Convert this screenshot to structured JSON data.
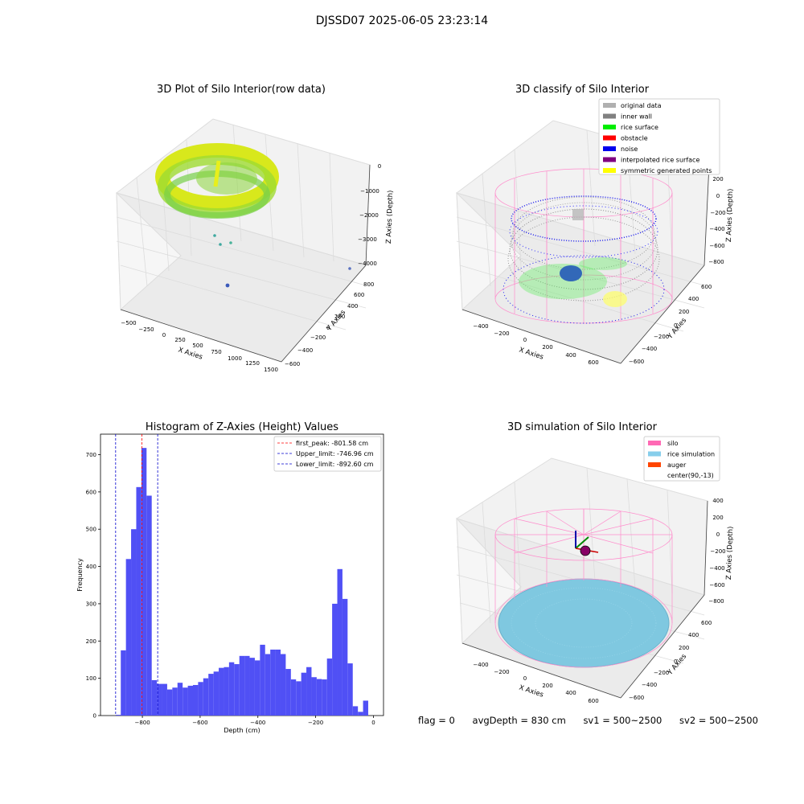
{
  "suptitle": "DJSSD07 2025-06-05 23:23:14",
  "footer": {
    "flag": "flag = 0",
    "avg_depth": "avgDepth = 830 cm",
    "sv1": "sv1 = 500~2500",
    "sv2": "sv2 = 500~2500"
  },
  "colors": {
    "histogram_bar": "#5050f5",
    "first_peak_line": "#ff0000",
    "limit_lines": "#0000cc",
    "silo": "#ff69b4",
    "rice_simulation": "#87ceeb",
    "auger": "#ff4500",
    "original_data": "#b0b0b0",
    "inner_wall": "#808080",
    "rice_surface": "#00ee00",
    "obstacle": "#ff0000",
    "noise": "#0000ee",
    "interpolated_rice_surface": "#800080",
    "symmetric_generated_points": "#ffff00"
  },
  "chart_data": [
    {
      "type": "scatter",
      "title": "3D Plot of Silo Interior(row data)",
      "xlabel": "X Axies",
      "ylabel": "Y Axies",
      "zlabel": "Z Axies (Depth)",
      "x_ticks": [
        "−500",
        "−250",
        "0",
        "250",
        "500",
        "750",
        "1000",
        "1250",
        "1500"
      ],
      "y_ticks": [
        "−600",
        "−400",
        "−200",
        "0",
        "200",
        "400",
        "600",
        "800"
      ],
      "z_ticks": [
        "−4000",
        "−3000",
        "−2000",
        "−1000",
        "0"
      ],
      "xlim": [
        -550,
        1550
      ],
      "ylim": [
        -650,
        850
      ],
      "zlim": [
        -4500,
        200
      ]
    },
    {
      "type": "scatter",
      "title": "3D classify of Silo Interior",
      "xlabel": "X Axies",
      "ylabel": "Y Axies",
      "zlabel": "Z Axies (Depth)",
      "x_ticks": [
        "−400",
        "−200",
        "0",
        "200",
        "400",
        "600"
      ],
      "y_ticks": [
        "−600",
        "−400",
        "−200",
        "0",
        "200",
        "400",
        "600"
      ],
      "z_ticks": [
        "−800",
        "−600",
        "−400",
        "−200",
        "0",
        "200"
      ],
      "legend_placement": "top-right",
      "legend": [
        "original data",
        "inner wall",
        "rice surface",
        "obstacle",
        "noise",
        "interpolated rice surface",
        "symmetric generated points"
      ]
    },
    {
      "type": "bar",
      "title": "Histogram of Z-Axies (Height) Values",
      "xlabel": "Depth (cm)",
      "ylabel": "Frequency",
      "xlim": [
        -945,
        35
      ],
      "ylim": [
        0,
        755
      ],
      "x_ticks": [
        -800,
        -600,
        -400,
        -200,
        0
      ],
      "y_ticks": [
        0,
        100,
        200,
        300,
        400,
        500,
        600,
        700
      ],
      "bin_start": -892.6,
      "bin_width": 17.85,
      "values": [
        2,
        175,
        420,
        500,
        613,
        718,
        590,
        95,
        85,
        85,
        70,
        75,
        88,
        75,
        80,
        82,
        90,
        100,
        112,
        118,
        128,
        130,
        143,
        138,
        160,
        160,
        155,
        148,
        190,
        165,
        177,
        177,
        165,
        125,
        97,
        92,
        115,
        130,
        103,
        98,
        97,
        153,
        300,
        393,
        313,
        140,
        25,
        10,
        40
      ],
      "vlines": [
        {
          "label": "first_peak: -801.58 cm",
          "x": -801.58,
          "color": "#ff0000"
        },
        {
          "label": "Upper_limit: -746.96 cm",
          "x": -746.96,
          "color": "#0000cc"
        },
        {
          "label": "Lower_limit: -892.60 cm",
          "x": -892.6,
          "color": "#0000cc"
        }
      ],
      "legend_placement": "top-right"
    },
    {
      "type": "scatter",
      "title": "3D simulation of Silo Interior",
      "xlabel": "X Axies",
      "ylabel": "Y Axies",
      "zlabel": "Z Axies (Depth)",
      "x_ticks": [
        "−400",
        "−200",
        "0",
        "200",
        "400",
        "600"
      ],
      "y_ticks": [
        "−600",
        "−400",
        "−200",
        "0",
        "200",
        "400",
        "600"
      ],
      "z_ticks": [
        "−800",
        "−600",
        "−400",
        "−200",
        "0",
        "200",
        "400"
      ],
      "legend_placement": "top-right",
      "legend": [
        "silo",
        "rice simulation",
        "auger",
        "center(90,-13)"
      ]
    }
  ]
}
